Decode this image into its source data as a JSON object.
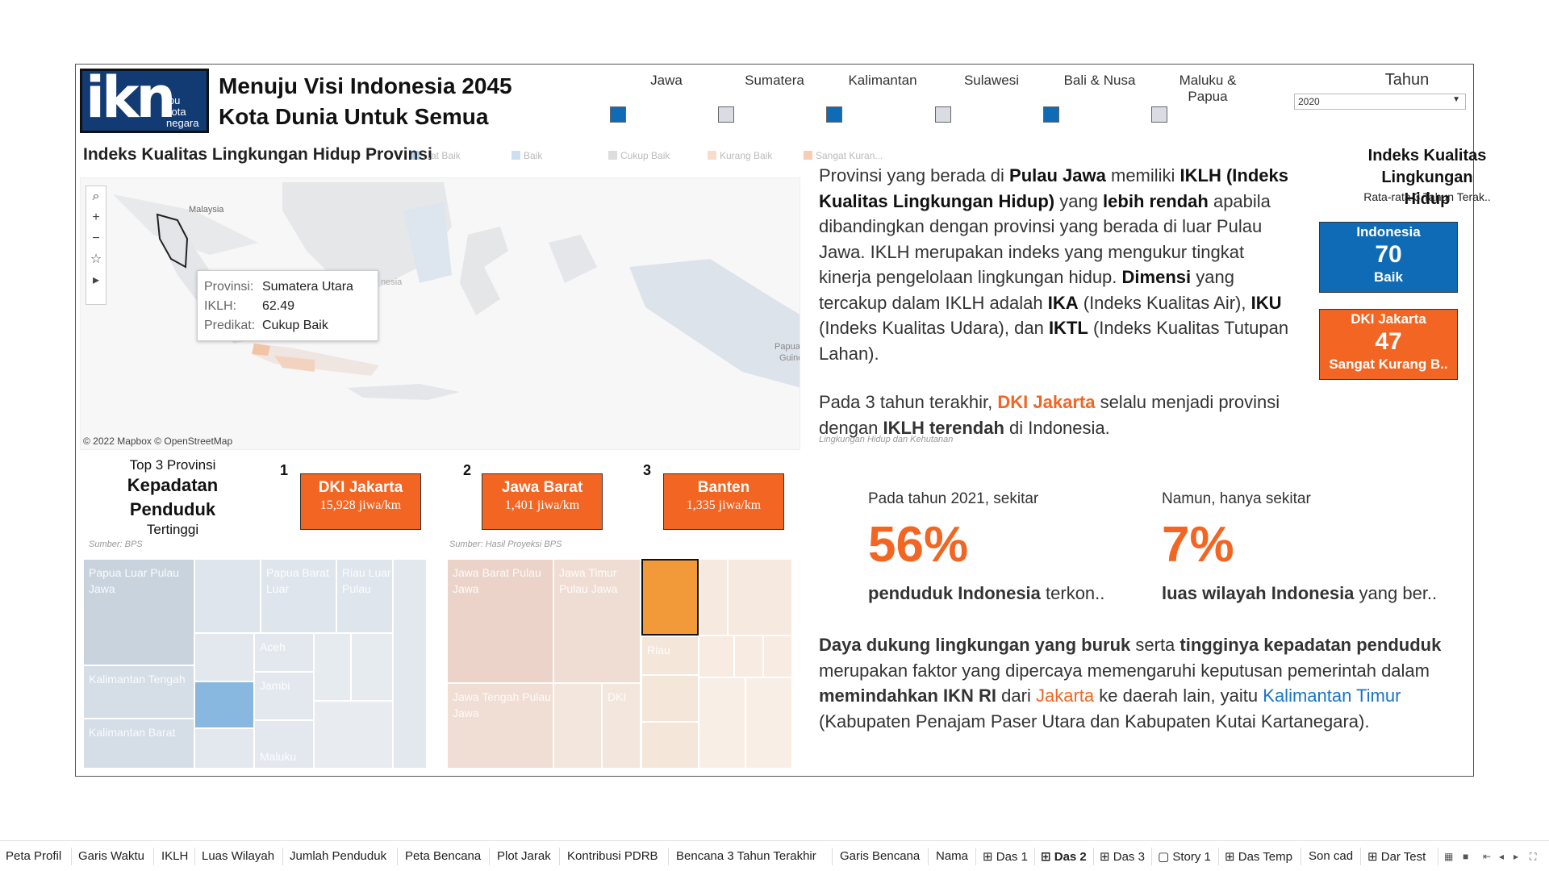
{
  "header": {
    "logo_big": "ikn",
    "logo_small": [
      "ibu",
      "kota",
      "negara"
    ],
    "title_line1": "Menuju Visi Indonesia 2045",
    "title_line2": "Kota Dunia Untuk Semua"
  },
  "regions": [
    {
      "label": "Jawa",
      "checked": true
    },
    {
      "label": "Sumatera",
      "checked": false
    },
    {
      "label": "Kalimantan",
      "checked": true
    },
    {
      "label": "Sulawesi",
      "checked": false
    },
    {
      "label": "Bali & Nusa",
      "checked": true
    },
    {
      "label": "Maluku & Papua",
      "checked": false
    }
  ],
  "filter": {
    "label": "Tahun",
    "value": "2020"
  },
  "map": {
    "title": "Indeks Kualitas Lingkungan Hidup Provinsi",
    "legend": [
      "...at Baik",
      "Baik",
      "Cukup Baik",
      "Kurang Baik",
      "Sangat Kuran..."
    ],
    "labels": {
      "malaysia": "Malaysia",
      "nesia": "nesia",
      "papua": "Papua N",
      "guine": "Guine"
    },
    "attribution": "© 2022 Mapbox © OpenStreetMap",
    "tooltip": {
      "k1": "Provinsi:",
      "v1": "Sumatera Utara",
      "k2": "IKLH:",
      "v2": "62.49",
      "k3": "Predikat:",
      "v3": "Cukup Baik"
    }
  },
  "iklh_text": {
    "p1": "Provinsi yang berada di ",
    "p1b": "Pulau Jawa",
    "p2": " memiliki ",
    "p2b": "IKLH (Indeks Kualitas Lingkungan Hidup)",
    "p3": " yang ",
    "p3b": "lebih rendah",
    "p4": " apabila dibandingkan dengan provinsi yang berada di luar Pulau Jawa. IKLH merupakan indeks yang mengukur tingkat kinerja pengelolaan lingkungan hidup. ",
    "p4b": "Dimensi",
    "p5": " yang tercakup dalam IKLH adalah ",
    "p5b": "IKA",
    "p6": " (Indeks Kualitas Air), ",
    "p6b": "IKU",
    "p7": " (Indeks Kualitas Udara), dan ",
    "p7b": "IKTL",
    "p8": " (Indeks Kualitas Tutupan Lahan).",
    "q1": "Pada 3 tahun terakhir, ",
    "q1o": "DKI Jakarta",
    "q2": " selalu menjadi provinsi dengan ",
    "q2b": "IKLH terendah",
    "q3": " di Indonesia.",
    "source": "Lingkungan Hidup dan Kehutanan"
  },
  "iklh_panel": {
    "title": "Indeks Kualitas Lingkungan Hidup",
    "subtitle": "Rata-rata 3 Tahun Terak..",
    "cards": [
      {
        "name": "Indonesia",
        "value": "70",
        "label": "Baik",
        "color": "#0f6bb5"
      },
      {
        "name": "DKI Jakarta",
        "value": "47",
        "label": "Sangat Kurang B..",
        "color": "#f26522"
      }
    ]
  },
  "top3": {
    "t1": "Top 3 Provinsi",
    "t2": "Kepadatan Penduduk",
    "t3": "Tertinggi",
    "items": [
      {
        "rank": "1",
        "name": "DKI Jakarta",
        "value": "15,928 jiwa/km"
      },
      {
        "rank": "2",
        "name": "Jawa Barat",
        "value": "1,401 jiwa/km"
      },
      {
        "rank": "3",
        "name": "Banten",
        "value": "1,335 jiwa/km"
      }
    ]
  },
  "treemap_left": {
    "source": "Sumber: BPS",
    "labels": [
      "Papua Luar Pulau Jawa",
      "Papua Barat Luar",
      "Riau Luar Pulau",
      "Aceh",
      "Jambi",
      "Kalimantan Tengah",
      "Kalimantan Barat",
      "Maluku"
    ]
  },
  "treemap_right": {
    "source": "Sumber: Hasil Proyeksi BPS",
    "labels": [
      "Jawa Barat Pulau Jawa",
      "Jawa Timur Pulau Jawa",
      "Riau",
      "Jawa Tengah Pulau Jawa",
      "DKI"
    ]
  },
  "stats": [
    {
      "label": "Pada tahun 2021, sekitar",
      "value": "56%",
      "desc_b": "penduduk Indonesia",
      "desc": " terkon.."
    },
    {
      "label": "Namun, hanya sekitar",
      "value": "7%",
      "desc_b": "luas wilayah Indonesia",
      "desc": " yang ber.."
    }
  ],
  "conclusion": {
    "a_b": "Daya dukung lingkungan yang buruk",
    "a": " serta ",
    "b_b": "tingginya kepadatan penduduk",
    "b": " merupakan faktor yang dipercaya memengaruhi keputusan pemerintah dalam ",
    "c_b": "memindahkan IKN RI",
    "c": " dari ",
    "c_o": "Jakarta",
    "d": " ke daerah lain, yaitu ",
    "d_blue": "Kalimantan Timur",
    "e": " (Kabupaten Penajam Paser Utara dan Kabupaten Kutai Kartanegara)."
  },
  "tabs": [
    "Peta Profil",
    "Garis Waktu",
    "IKLH",
    "Luas Wilayah",
    "Jumlah Penduduk",
    "Peta Bencana",
    "Plot Jarak",
    "Kontribusi PDRB",
    "Bencana 3 Tahun Terakhir",
    "Garis Bencana",
    "Nama",
    "⊞ Das 1",
    "⊞ Das 2",
    "⊞ Das 3",
    "▢ Story 1",
    "⊞ Das Temp",
    "Son cad",
    "⊞ Dar Test"
  ],
  "active_tab": "⊞ Das 2",
  "colors": {
    "accent_orange": "#f26522",
    "accent_blue": "#0f6bb5",
    "swatch_on": "#0f6bb5",
    "swatch_off": "#d9dde3"
  }
}
